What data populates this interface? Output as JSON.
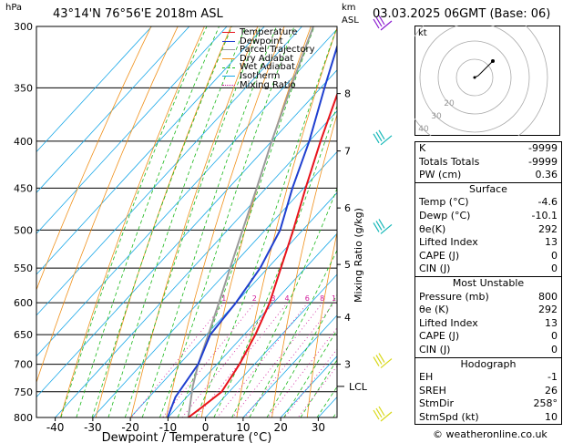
{
  "header": {
    "location": "43°14'N  76°56'E  2018m  ASL",
    "date": "03.03.2025  06GMT  (Base: 06)",
    "p_unit": "hPa",
    "km_unit": "km",
    "asl": "ASL"
  },
  "chart_data": {
    "type": "skew-T log-P sounding",
    "pressure_levels": [
      300,
      350,
      400,
      450,
      500,
      550,
      600,
      650,
      700,
      750,
      800
    ],
    "p_range": [
      300,
      800
    ],
    "t_range_at_bottom": [
      -45,
      35
    ],
    "x_ticks": [
      -40,
      -30,
      -20,
      -10,
      0,
      10,
      20,
      30
    ],
    "x_label": "Dewpoint / Temperature (°C)",
    "y_label": "Mixing Ratio (g/kg)",
    "height_km": [
      {
        "km": 3,
        "p": 700
      },
      {
        "km": 4,
        "p": 622
      },
      {
        "km": 5,
        "p": 545
      },
      {
        "km": 6,
        "p": 473
      },
      {
        "km": 7,
        "p": 410
      },
      {
        "km": 8,
        "p": 355
      }
    ],
    "lcl": {
      "label": "LCL",
      "p": 740
    },
    "mixing_ratio_labels": [
      "1",
      "2",
      "3",
      "4",
      "6",
      "8",
      "10",
      "15",
      "20",
      "25"
    ],
    "mixing_ratio_values": [
      1,
      2,
      3,
      4,
      6,
      8,
      10,
      15,
      20,
      25
    ],
    "temperature": [
      {
        "p": 800,
        "t": -4.6
      },
      {
        "p": 780,
        "t": -3.5
      },
      {
        "p": 750,
        "t": -2
      },
      {
        "p": 700,
        "t": -4
      },
      {
        "p": 650,
        "t": -7
      },
      {
        "p": 600,
        "t": -11
      },
      {
        "p": 550,
        "t": -16.5
      },
      {
        "p": 500,
        "t": -22.5
      },
      {
        "p": 450,
        "t": -29.5
      },
      {
        "p": 400,
        "t": -37
      },
      {
        "p": 350,
        "t": -45
      },
      {
        "p": 300,
        "t": -54
      }
    ],
    "dewpoint": [
      {
        "p": 800,
        "t": -10.1
      },
      {
        "p": 760,
        "t": -13
      },
      {
        "p": 700,
        "t": -15
      },
      {
        "p": 650,
        "t": -19
      },
      {
        "p": 600,
        "t": -20
      },
      {
        "p": 550,
        "t": -22
      },
      {
        "p": 500,
        "t": -26
      },
      {
        "p": 450,
        "t": -33
      },
      {
        "p": 400,
        "t": -40
      },
      {
        "p": 350,
        "t": -49
      },
      {
        "p": 300,
        "t": -59
      }
    ],
    "parcel": [
      {
        "p": 800,
        "t": -4.6
      },
      {
        "p": 740,
        "t": -11
      },
      {
        "p": 700,
        "t": -15
      },
      {
        "p": 650,
        "t": -19.5
      },
      {
        "p": 600,
        "t": -24.5
      },
      {
        "p": 550,
        "t": -30
      },
      {
        "p": 500,
        "t": -36
      },
      {
        "p": 450,
        "t": -42.5
      },
      {
        "p": 400,
        "t": -50
      },
      {
        "p": 350,
        "t": -58
      },
      {
        "p": 300,
        "t": -67
      }
    ],
    "legend": [
      {
        "label": "Temperature",
        "color": "#e8141c"
      },
      {
        "label": "Dewpoint",
        "color": "#1f3fd0"
      },
      {
        "label": "Parcel Trajectory",
        "color": "#9a9a9a"
      },
      {
        "label": "Dry Adiabat",
        "color": "#f0901a"
      },
      {
        "label": "Wet Adiabat",
        "color": "#1ab81a"
      },
      {
        "label": "Isotherm",
        "color": "#1aa8e8"
      },
      {
        "label": "Mixing Ratio",
        "color": "#d0169a"
      }
    ],
    "wind_levels": [
      300,
      400,
      500,
      700,
      800
    ]
  },
  "hodograph": {
    "label": "kt",
    "ring_labels": [
      "40",
      "30",
      "20"
    ],
    "trace_kt": [
      [
        0,
        0
      ],
      [
        2,
        1
      ],
      [
        4,
        3
      ],
      [
        10,
        9
      ]
    ]
  },
  "indices": [
    {
      "label": "K",
      "value": "-9999"
    },
    {
      "label": "Totals Totals",
      "value": "-9999"
    },
    {
      "label": "PW (cm)",
      "value": "0.36"
    }
  ],
  "surface": {
    "title": "Surface",
    "rows": [
      {
        "label": "Temp (°C)",
        "value": "-4.6"
      },
      {
        "label": "Dewp (°C)",
        "value": "-10.1"
      },
      {
        "label": "θe(K)",
        "value": "292"
      },
      {
        "label": "Lifted Index",
        "value": "13"
      },
      {
        "label": "CAPE (J)",
        "value": "0"
      },
      {
        "label": "CIN (J)",
        "value": "0"
      }
    ]
  },
  "most_unstable": {
    "title": "Most Unstable",
    "rows": [
      {
        "label": "Pressure (mb)",
        "value": "800"
      },
      {
        "label": "θe (K)",
        "value": "292"
      },
      {
        "label": "Lifted Index",
        "value": "13"
      },
      {
        "label": "CAPE (J)",
        "value": "0"
      },
      {
        "label": "CIN (J)",
        "value": "0"
      }
    ]
  },
  "hodo_table": {
    "title": "Hodograph",
    "rows": [
      {
        "label": "EH",
        "value": "-1"
      },
      {
        "label": "SREH",
        "value": "26"
      },
      {
        "label": "StmDir",
        "value": "258°"
      },
      {
        "label": "StmSpd (kt)",
        "value": "10"
      }
    ]
  },
  "watermark": "© weatheronline.co.uk"
}
